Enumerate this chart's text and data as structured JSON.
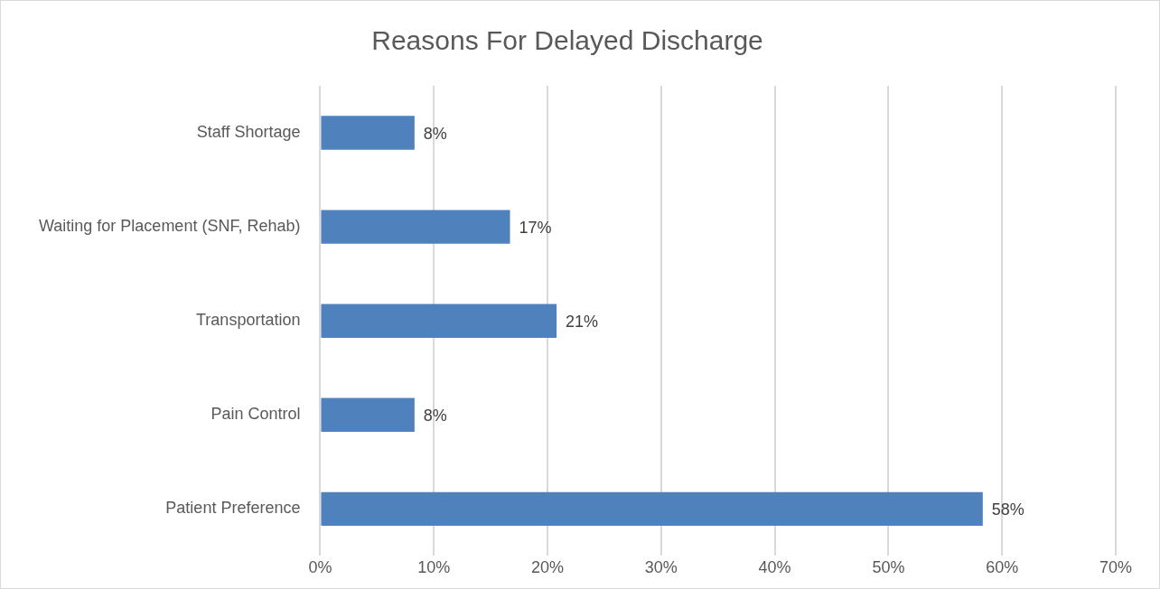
{
  "chart_data": {
    "type": "bar",
    "orientation": "horizontal",
    "title": "Reasons For Delayed Discharge",
    "categories": [
      "Staff Shortage",
      "Waiting for Placement (SNF, Rehab)",
      "Transportation",
      "Pain Control",
      "Patient Preference"
    ],
    "values": [
      8.3,
      16.7,
      20.8,
      8.3,
      58.3
    ],
    "value_labels": [
      "8%",
      "17%",
      "21%",
      "8%",
      "58%"
    ],
    "color": "#4f81bd",
    "xlim": [
      0,
      70
    ],
    "xticks": [
      {
        "value": 0,
        "label": "0%"
      },
      {
        "value": 10,
        "label": "10%"
      },
      {
        "value": 20,
        "label": "20%"
      },
      {
        "value": 30,
        "label": "30%"
      },
      {
        "value": 40,
        "label": "40%"
      },
      {
        "value": 50,
        "label": "50%"
      },
      {
        "value": 60,
        "label": "60%"
      },
      {
        "value": 70,
        "label": "70%"
      }
    ],
    "grid": "x"
  }
}
